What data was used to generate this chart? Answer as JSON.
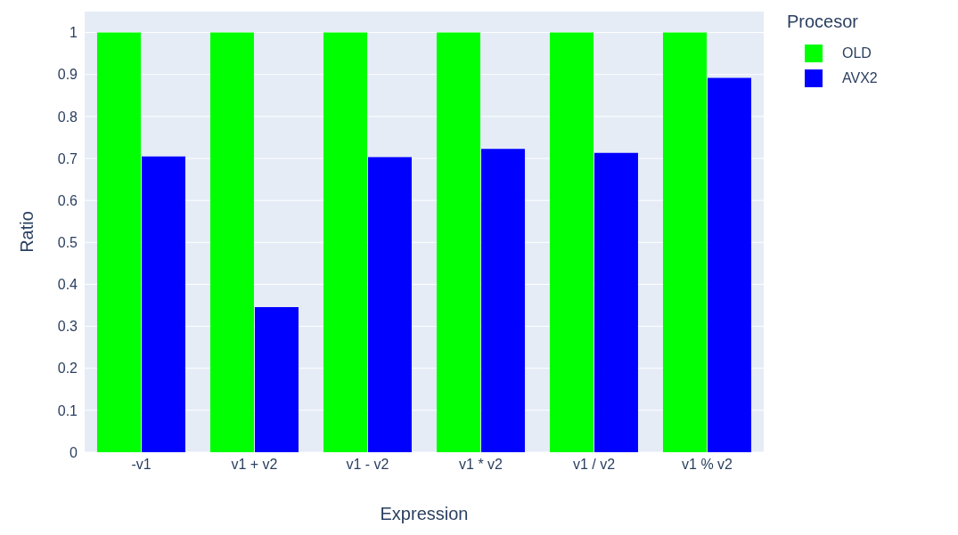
{
  "chart_data": {
    "type": "bar",
    "xlabel": "Expression",
    "ylabel": "Ratio",
    "legend_title": "Procesor",
    "categories": [
      "-v1",
      "v1 + v2",
      "v1 - v2",
      "v1 * v2",
      "v1 / v2",
      "v1 % v2"
    ],
    "series": [
      {
        "name": "OLD",
        "color": "#00ff00",
        "values": [
          1,
          1,
          1,
          1,
          1,
          1
        ]
      },
      {
        "name": "AVX2",
        "color": "#0000ff",
        "values": [
          0.705,
          0.346,
          0.703,
          0.723,
          0.713,
          0.892
        ]
      }
    ],
    "ylim": [
      0,
      1.05
    ],
    "yticks": [
      0,
      0.1,
      0.2,
      0.3,
      0.4,
      0.5,
      0.6,
      0.7,
      0.8,
      0.9,
      1
    ],
    "grid": "y",
    "legend": "top right"
  }
}
